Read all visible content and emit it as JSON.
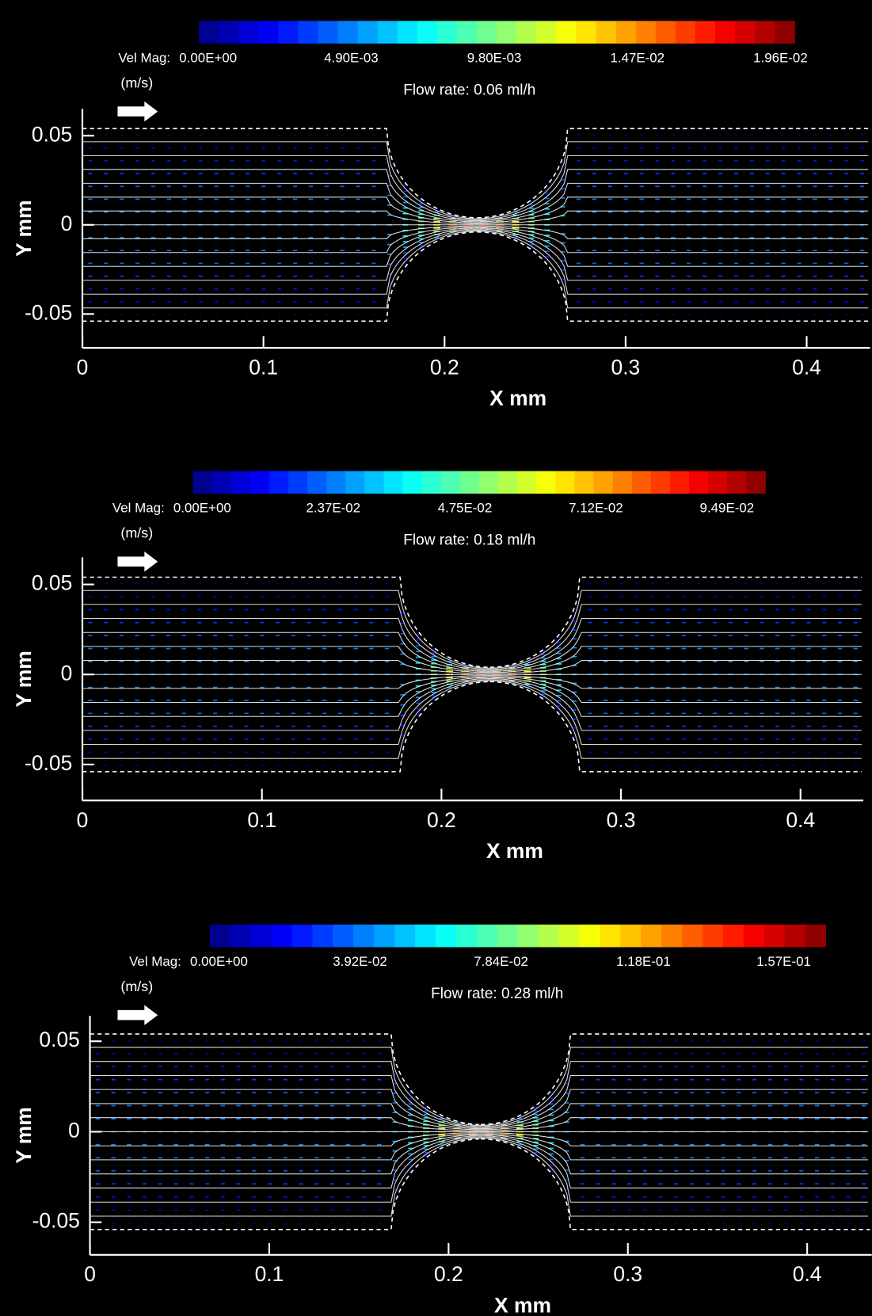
{
  "chart_data": [
    {
      "type": "vector-field",
      "title": "Flow rate: 0.06 ml/h",
      "colorbar": {
        "label": "Vel Mag:",
        "unit": "(m/s)",
        "colormap": "jet",
        "clim": [
          0,
          0.0204
        ],
        "ticks": [
          {
            "value": 0,
            "label": "0.00E+00"
          },
          {
            "value": 0.0049,
            "label": "4.90E-03"
          },
          {
            "value": 0.0098,
            "label": "9.80E-03"
          },
          {
            "value": 0.0147,
            "label": "1.47E-02"
          },
          {
            "value": 0.0196,
            "label": "1.96E-02"
          }
        ]
      },
      "x_label": "X mm",
      "y_label": "Y mm",
      "xlim": [
        0,
        0.435
      ],
      "ylim": [
        -0.069,
        0.065
      ],
      "xticks": [
        0,
        0.1,
        0.2,
        0.3,
        0.4
      ],
      "yticks": [
        -0.05,
        0,
        0.05
      ]
    },
    {
      "type": "vector-field",
      "title": "Flow rate: 0.18 ml/h",
      "colorbar": {
        "label": "Vel Mag:",
        "unit": "(m/s)",
        "colormap": "jet",
        "clim": [
          0,
          0.1035
        ],
        "ticks": [
          {
            "value": 0,
            "label": "0.00E+00"
          },
          {
            "value": 0.0237,
            "label": "2.37E-02"
          },
          {
            "value": 0.0475,
            "label": "4.75E-02"
          },
          {
            "value": 0.0712,
            "label": "7.12E-02"
          },
          {
            "value": 0.0949,
            "label": "9.49E-02"
          }
        ]
      },
      "x_label": "X mm",
      "y_label": "Y mm",
      "xlim": [
        0,
        0.435
      ],
      "ylim": [
        -0.07,
        0.065
      ],
      "xticks": [
        0,
        0.1,
        0.2,
        0.3,
        0.4
      ],
      "yticks": [
        -0.05,
        0,
        0.05
      ]
    },
    {
      "type": "vector-field",
      "title": "Flow rate: 0.28 ml/h",
      "colorbar": {
        "label": "Vel Mag:",
        "unit": "(m/s)",
        "colormap": "jet",
        "clim": [
          0,
          0.1712
        ],
        "ticks": [
          {
            "value": 0,
            "label": "0.00E+00"
          },
          {
            "value": 0.0392,
            "label": "3.92E-02"
          },
          {
            "value": 0.0784,
            "label": "7.84E-02"
          },
          {
            "value": 0.118,
            "label": "1.18E-01"
          },
          {
            "value": 0.157,
            "label": "1.57E-01"
          }
        ]
      },
      "x_label": "X mm",
      "y_label": "Y mm",
      "xlim": [
        0,
        0.436
      ],
      "ylim": [
        -0.068,
        0.064
      ],
      "xticks": [
        0,
        0.1,
        0.2,
        0.3,
        0.4
      ],
      "yticks": [
        -0.05,
        0,
        0.05
      ]
    }
  ]
}
